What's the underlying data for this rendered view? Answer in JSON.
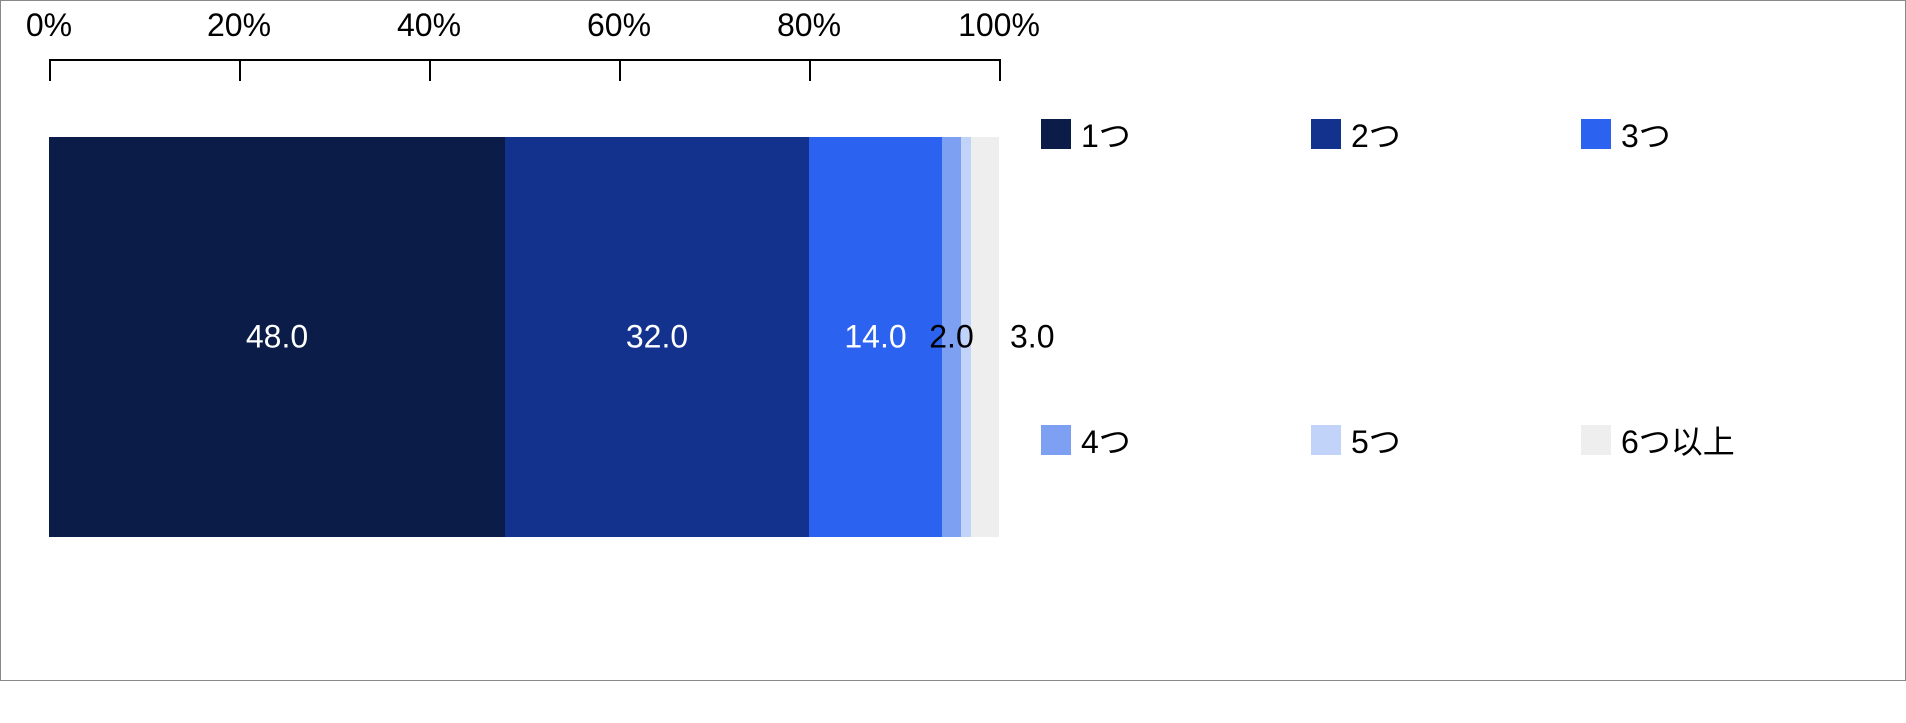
{
  "chart": {
    "type": "stacked-bar-horizontal",
    "background_color": "#ffffff",
    "border_color": "#888888",
    "axis": {
      "min": 0,
      "max": 100,
      "tick_step": 20,
      "ticks": [
        {
          "value": 0,
          "label": "0%"
        },
        {
          "value": 20,
          "label": "20%"
        },
        {
          "value": 40,
          "label": "40%"
        },
        {
          "value": 60,
          "label": "60%"
        },
        {
          "value": 80,
          "label": "80%"
        },
        {
          "value": 100,
          "label": "100%"
        }
      ],
      "label_fontsize": 32,
      "label_color": "#000000",
      "tick_color": "#000000"
    },
    "segments": [
      {
        "name": "1つ",
        "value": 48.0,
        "label": "48.0",
        "color": "#0a1c47",
        "text_color": "#ffffff",
        "show_inside": true
      },
      {
        "name": "2つ",
        "value": 32.0,
        "label": "32.0",
        "color": "#13328e",
        "text_color": "#ffffff",
        "show_inside": true
      },
      {
        "name": "3つ",
        "value": 14.0,
        "label": "14.0",
        "color": "#2b62f0",
        "text_color": "#ffffff",
        "show_inside": true
      },
      {
        "name": "4つ",
        "value": 2.0,
        "label": "2.0",
        "color": "#7da0f3",
        "text_color": "#000000",
        "show_inside": false
      },
      {
        "name": "5つ",
        "value": 1.0,
        "label": "",
        "color": "#c2d3fa",
        "text_color": "#000000",
        "show_inside": false
      },
      {
        "name": "6つ以上",
        "value": 3.0,
        "label": "3.0",
        "color": "#eeeeee",
        "text_color": "#000000",
        "show_inside": false
      }
    ],
    "overflow_labels": [
      {
        "text": "2.0",
        "left_pct": 95.0,
        "color": "#000000"
      },
      {
        "text": "3.0",
        "left_pct": 103.5,
        "color": "#000000"
      }
    ],
    "bar_label_fontsize": 32,
    "legend": {
      "items": [
        {
          "label": "1つ",
          "color": "#0a1c47"
        },
        {
          "label": "2つ",
          "color": "#13328e"
        },
        {
          "label": "3つ",
          "color": "#2b62f0"
        },
        {
          "label": "4つ",
          "color": "#7da0f3"
        },
        {
          "label": "5つ",
          "color": "#c2d3fa"
        },
        {
          "label": "6つ以上",
          "color": "#eeeeee"
        }
      ],
      "fontsize": 32,
      "swatch_size": 30,
      "columns": 3
    }
  }
}
